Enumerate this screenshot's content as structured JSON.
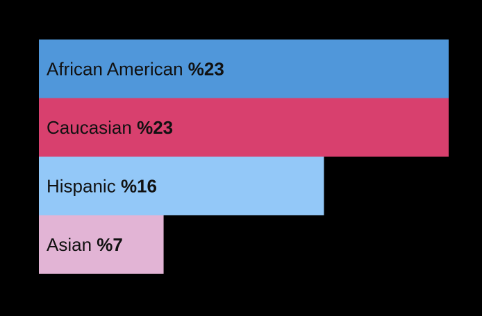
{
  "chart_data": {
    "type": "bar",
    "orientation": "horizontal",
    "categories": [
      "African American",
      "Caucasian",
      "Hispanic",
      "Asian"
    ],
    "values": [
      23,
      23,
      16,
      7
    ],
    "value_labels": [
      "%23",
      "%23",
      "%16",
      "%7"
    ],
    "colors": [
      "#5097DA",
      "#D8406E",
      "#93C8F8",
      "#E2B4D5"
    ],
    "background": "#000000",
    "grid": false,
    "legend": "none",
    "title": "",
    "xlabel": "",
    "ylabel": "",
    "xlim": [
      0,
      23
    ]
  }
}
